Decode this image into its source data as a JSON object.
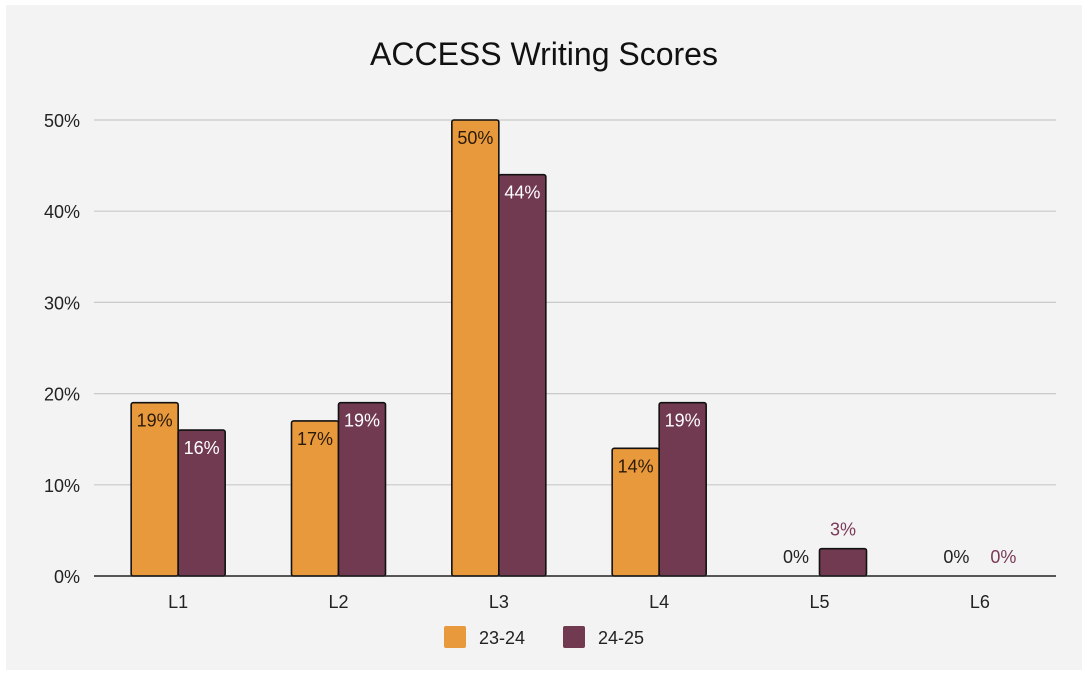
{
  "chart_data": {
    "type": "bar",
    "title": "ACCESS Writing Scores",
    "categories": [
      "L1",
      "L2",
      "L3",
      "L4",
      "L5",
      "L6"
    ],
    "series": [
      {
        "name": "23-24",
        "color": "#E8993C",
        "values": [
          19,
          17,
          50,
          14,
          0,
          0
        ],
        "labels": [
          "19%",
          "17%",
          "50%",
          "14%",
          "0%",
          "0%"
        ]
      },
      {
        "name": "24-25",
        "color": "#723A50",
        "values": [
          16,
          19,
          44,
          19,
          3,
          0
        ],
        "labels": [
          "16%",
          "19%",
          "44%",
          "19%",
          "3%",
          "0%"
        ]
      }
    ],
    "yticks": [
      "0%",
      "10%",
      "20%",
      "30%",
      "40%",
      "50%"
    ],
    "ylim": [
      0,
      50
    ],
    "grid": true,
    "legend_position": "bottom"
  }
}
